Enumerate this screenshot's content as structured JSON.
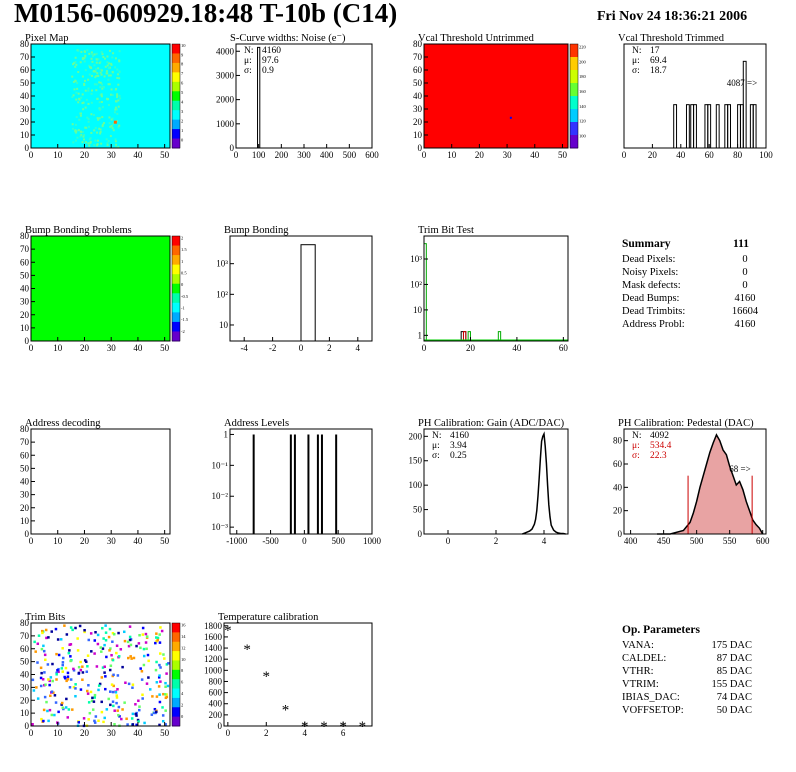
{
  "page": {
    "title": "M0156-060929.18:48 T-10b (C14)",
    "date": "Fri Nov 24 18:36:21 2006"
  },
  "colors": {
    "cyan": "#00ffff",
    "red": "#ff0000",
    "green": "#00ff00",
    "pedestal_fill": "#cc3333"
  },
  "chart_data": [
    {
      "id": "pixel_map",
      "type": "heatmap",
      "title": "Pixel Map",
      "xlim": [
        0,
        52
      ],
      "ylim": [
        0,
        80
      ],
      "xticks": [
        0,
        10,
        20,
        30,
        40,
        50
      ],
      "yticks": [
        0,
        10,
        20,
        30,
        40,
        50,
        60,
        70,
        80
      ],
      "background": "cyan",
      "palette_ticks": [
        "10",
        "9",
        "8",
        "7",
        "6",
        "5",
        "4",
        "3",
        "2",
        "1",
        "0"
      ]
    },
    {
      "id": "scurve",
      "type": "bar",
      "title": "S-Curve widths: Noise (e⁻)",
      "xlim": [
        0,
        600
      ],
      "ylim": [
        0,
        4300
      ],
      "xticks": [
        0,
        100,
        200,
        300,
        400,
        500,
        600
      ],
      "yticks": [
        0,
        1000,
        2000,
        3000,
        4000
      ],
      "bins": [
        {
          "x0": 95,
          "x1": 105,
          "y": 4160
        }
      ],
      "stats": [
        {
          "label": "N:",
          "value": "4160"
        },
        {
          "label": "μ:",
          "value": "97.6"
        },
        {
          "label": "σ:",
          "value": "0.9"
        }
      ]
    },
    {
      "id": "vcal_untrimmed",
      "type": "heatmap",
      "title": "Vcal Threshold Untrimmed",
      "xlim": [
        0,
        52
      ],
      "ylim": [
        0,
        80
      ],
      "xticks": [
        0,
        10,
        20,
        30,
        40,
        50
      ],
      "yticks": [
        0,
        10,
        20,
        30,
        40,
        50,
        60,
        70,
        80
      ],
      "background": "red",
      "palette_ticks": [
        "220",
        "200",
        "180",
        "160",
        "140",
        "120",
        "100"
      ]
    },
    {
      "id": "vcal_trimmed",
      "type": "bar",
      "title": "Vcal Threshold Trimmed",
      "xlim": [
        0,
        100
      ],
      "ylim": [
        0,
        1.2
      ],
      "xticks": [
        0,
        20,
        40,
        60,
        80,
        100
      ],
      "bins": [
        {
          "x0": 35,
          "x1": 37,
          "y": 0.5
        },
        {
          "x0": 44,
          "x1": 46,
          "y": 0.5
        },
        {
          "x0": 47,
          "x1": 49,
          "y": 0.5
        },
        {
          "x0": 49,
          "x1": 51,
          "y": 0.5
        },
        {
          "x0": 57,
          "x1": 59,
          "y": 0.5
        },
        {
          "x0": 59,
          "x1": 61,
          "y": 0.5
        },
        {
          "x0": 65,
          "x1": 67,
          "y": 0.5
        },
        {
          "x0": 71,
          "x1": 73,
          "y": 0.5
        },
        {
          "x0": 73,
          "x1": 75,
          "y": 0.5
        },
        {
          "x0": 80,
          "x1": 82,
          "y": 0.5
        },
        {
          "x0": 82,
          "x1": 84,
          "y": 0.5
        },
        {
          "x0": 84,
          "x1": 86,
          "y": 1.0
        },
        {
          "x0": 89,
          "x1": 91,
          "y": 0.5
        },
        {
          "x0": 91,
          "x1": 93,
          "y": 0.5
        }
      ],
      "stats": [
        {
          "label": "N:",
          "value": "17"
        },
        {
          "label": "μ:",
          "value": "69.4"
        },
        {
          "label": "σ:",
          "value": "18.7"
        }
      ],
      "overflow": "4087 =>"
    },
    {
      "id": "bump_problems",
      "type": "heatmap",
      "title": "Bump Bonding Problems",
      "xlim": [
        0,
        52
      ],
      "ylim": [
        0,
        80
      ],
      "xticks": [
        0,
        10,
        20,
        30,
        40,
        50
      ],
      "yticks": [
        0,
        10,
        20,
        30,
        40,
        50,
        60,
        70,
        80
      ],
      "background": "green",
      "palette_ticks": [
        "2",
        "1.5",
        "1",
        "0.5",
        "0",
        "-0.5",
        "-1",
        "-1.5",
        "-2"
      ]
    },
    {
      "id": "bump_bonding",
      "type": "bar",
      "title": "Bump Bonding",
      "xlim": [
        -5,
        5
      ],
      "yscale": "log",
      "ylim": [
        3,
        8000
      ],
      "xticks": [
        -4,
        -2,
        0,
        2,
        4
      ],
      "yticks": [
        {
          "v": 10,
          "label": "10"
        },
        {
          "v": 100,
          "label": "10²"
        },
        {
          "v": 1000,
          "label": "10³"
        }
      ],
      "bins": [
        {
          "x0": 0,
          "x1": 1,
          "y": 4160
        }
      ]
    },
    {
      "id": "trim_bits_test",
      "type": "bar",
      "title": "Trim Bit Test",
      "xlim": [
        0,
        62
      ],
      "yscale": "log",
      "ylim": [
        0.6,
        8000
      ],
      "xticks": [
        0,
        20,
        40,
        60
      ],
      "yticks": [
        {
          "v": 1,
          "label": "1"
        },
        {
          "v": 10,
          "label": "10"
        },
        {
          "v": 100,
          "label": "10²"
        },
        {
          "v": 1000,
          "label": "10³"
        }
      ],
      "series": [
        {
          "color": "#000000",
          "bins": [
            {
              "x0": 16,
              "x1": 17,
              "y": 1.4
            },
            {
              "x0": 17,
              "x1": 18,
              "y": 1.4
            }
          ]
        },
        {
          "color": "#cc0000",
          "bins": [
            {
              "x0": 17,
              "x1": 18,
              "y": 1.4
            }
          ]
        },
        {
          "color": "#00aa00",
          "bins": [
            {
              "x0": 0,
              "x1": 1,
              "y": 4000
            },
            {
              "x0": 19,
              "x1": 20,
              "y": 1.4
            },
            {
              "x0": 32,
              "x1": 33,
              "y": 1.4
            }
          ]
        }
      ]
    },
    {
      "id": "address_decoding",
      "type": "heatmap",
      "title": "Address decoding",
      "xlim": [
        0,
        52
      ],
      "ylim": [
        0,
        80
      ],
      "xticks": [
        0,
        10,
        20,
        30,
        40,
        50
      ],
      "yticks": [
        0,
        10,
        20,
        30,
        40,
        50,
        60,
        70,
        80
      ],
      "background": "none"
    },
    {
      "id": "address_levels",
      "type": "bar",
      "title": "Address Levels",
      "xlim": [
        -1100,
        1000
      ],
      "yscale": "log",
      "ylim": [
        0.0006,
        1.5
      ],
      "xticks": [
        -1000,
        -500,
        0,
        500,
        1000
      ],
      "yticks": [
        {
          "v": 0.001,
          "label": "10⁻³"
        },
        {
          "v": 0.01,
          "label": "10⁻²"
        },
        {
          "v": 0.1,
          "label": "10⁻¹"
        },
        {
          "v": 1,
          "label": "1"
        }
      ],
      "lines": [
        -750,
        -200,
        -140,
        60,
        200,
        260,
        470
      ]
    },
    {
      "id": "ph_gain",
      "type": "line",
      "title": "PH Calibration: Gain (ADC/DAC)",
      "xlim": [
        -1,
        5
      ],
      "ylim": [
        0,
        215
      ],
      "xticks": [
        0,
        2,
        4
      ],
      "yticks": [
        0,
        50,
        100,
        150,
        200
      ],
      "x": [
        3.1,
        3.2,
        3.3,
        3.4,
        3.5,
        3.6,
        3.65,
        3.7,
        3.75,
        3.8,
        3.85,
        3.9,
        3.95,
        4.0,
        4.05,
        4.1,
        4.15,
        4.2,
        4.25,
        4.3,
        4.4,
        4.5,
        4.6,
        4.7,
        4.8,
        4.9
      ],
      "y": [
        0,
        2,
        4,
        6,
        10,
        20,
        30,
        48,
        78,
        115,
        155,
        190,
        200,
        205,
        180,
        145,
        100,
        60,
        35,
        18,
        8,
        4,
        2,
        1,
        1,
        0
      ],
      "stats": [
        {
          "label": "N:",
          "value": "4160"
        },
        {
          "label": "μ:",
          "value": "3.94"
        },
        {
          "label": "σ:",
          "value": "0.25"
        }
      ]
    },
    {
      "id": "ph_pedestal",
      "type": "area",
      "title": "PH Calibration: Pedestal (DAC)",
      "xlim": [
        390,
        605
      ],
      "ylim": [
        0,
        90
      ],
      "xticks": [
        400,
        450,
        500,
        550,
        600
      ],
      "yticks": [
        0,
        20,
        40,
        60,
        80
      ],
      "x": [
        440,
        460,
        480,
        490,
        495,
        500,
        505,
        510,
        515,
        520,
        525,
        530,
        535,
        540,
        545,
        550,
        555,
        560,
        565,
        570,
        575,
        580,
        585,
        590,
        595,
        600
      ],
      "y": [
        0,
        0,
        3,
        10,
        18,
        28,
        40,
        50,
        60,
        70,
        78,
        85,
        80,
        72,
        68,
        58,
        50,
        42,
        45,
        38,
        28,
        20,
        12,
        8,
        5,
        0
      ],
      "markers": [
        487,
        584
      ],
      "overflow": "68 =>",
      "stats": [
        {
          "label": "N:",
          "value": "4092"
        },
        {
          "label": "μ:",
          "value": "534.4"
        },
        {
          "label": "σ:",
          "value": "22.3"
        }
      ]
    },
    {
      "id": "trim_bits",
      "type": "heatmap",
      "title": "Trim Bits",
      "xlim": [
        0,
        52
      ],
      "ylim": [
        0,
        80
      ],
      "xticks": [
        0,
        10,
        20,
        30,
        40,
        50
      ],
      "yticks": [
        0,
        10,
        20,
        30,
        40,
        50,
        60,
        70,
        80
      ],
      "background": "none",
      "palette_ticks": [
        "16",
        "14",
        "12",
        "10",
        "8",
        "6",
        "4",
        "2",
        "0"
      ]
    },
    {
      "id": "temperature",
      "type": "scatter",
      "title": "Temperature calibration",
      "xlim": [
        -0.2,
        7.5
      ],
      "ylim": [
        0,
        1850
      ],
      "xticks": [
        0,
        2,
        4,
        6
      ],
      "yticks": [
        0,
        200,
        400,
        600,
        800,
        1000,
        1200,
        1400,
        1600,
        1800
      ],
      "x": [
        0,
        1,
        2,
        3,
        4,
        5,
        6,
        7
      ],
      "y": [
        1720,
        1380,
        900,
        300,
        0,
        0,
        0,
        0
      ]
    }
  ],
  "summary": {
    "title": "Summary",
    "count": "111",
    "rows": [
      {
        "label": "Dead Pixels:",
        "value": "0"
      },
      {
        "label": "Noisy Pixels:",
        "value": "0"
      },
      {
        "label": "Mask defects:",
        "value": "0"
      },
      {
        "label": "Dead Bumps:",
        "value": "4160"
      },
      {
        "label": "Dead Trimbits:",
        "value": "16604"
      },
      {
        "label": "Address Probl:",
        "value": "4160"
      }
    ]
  },
  "params": {
    "title": "Op. Parameters",
    "rows": [
      {
        "label": "VANA:",
        "value": "175 DAC"
      },
      {
        "label": "CALDEL:",
        "value": "87 DAC"
      },
      {
        "label": "VTHR:",
        "value": "85 DAC"
      },
      {
        "label": "VTRIM:",
        "value": "155 DAC"
      },
      {
        "label": "IBIAS_DAC:",
        "value": "74 DAC"
      },
      {
        "label": "VOFFSETOP:",
        "value": "50 DAC"
      }
    ]
  }
}
